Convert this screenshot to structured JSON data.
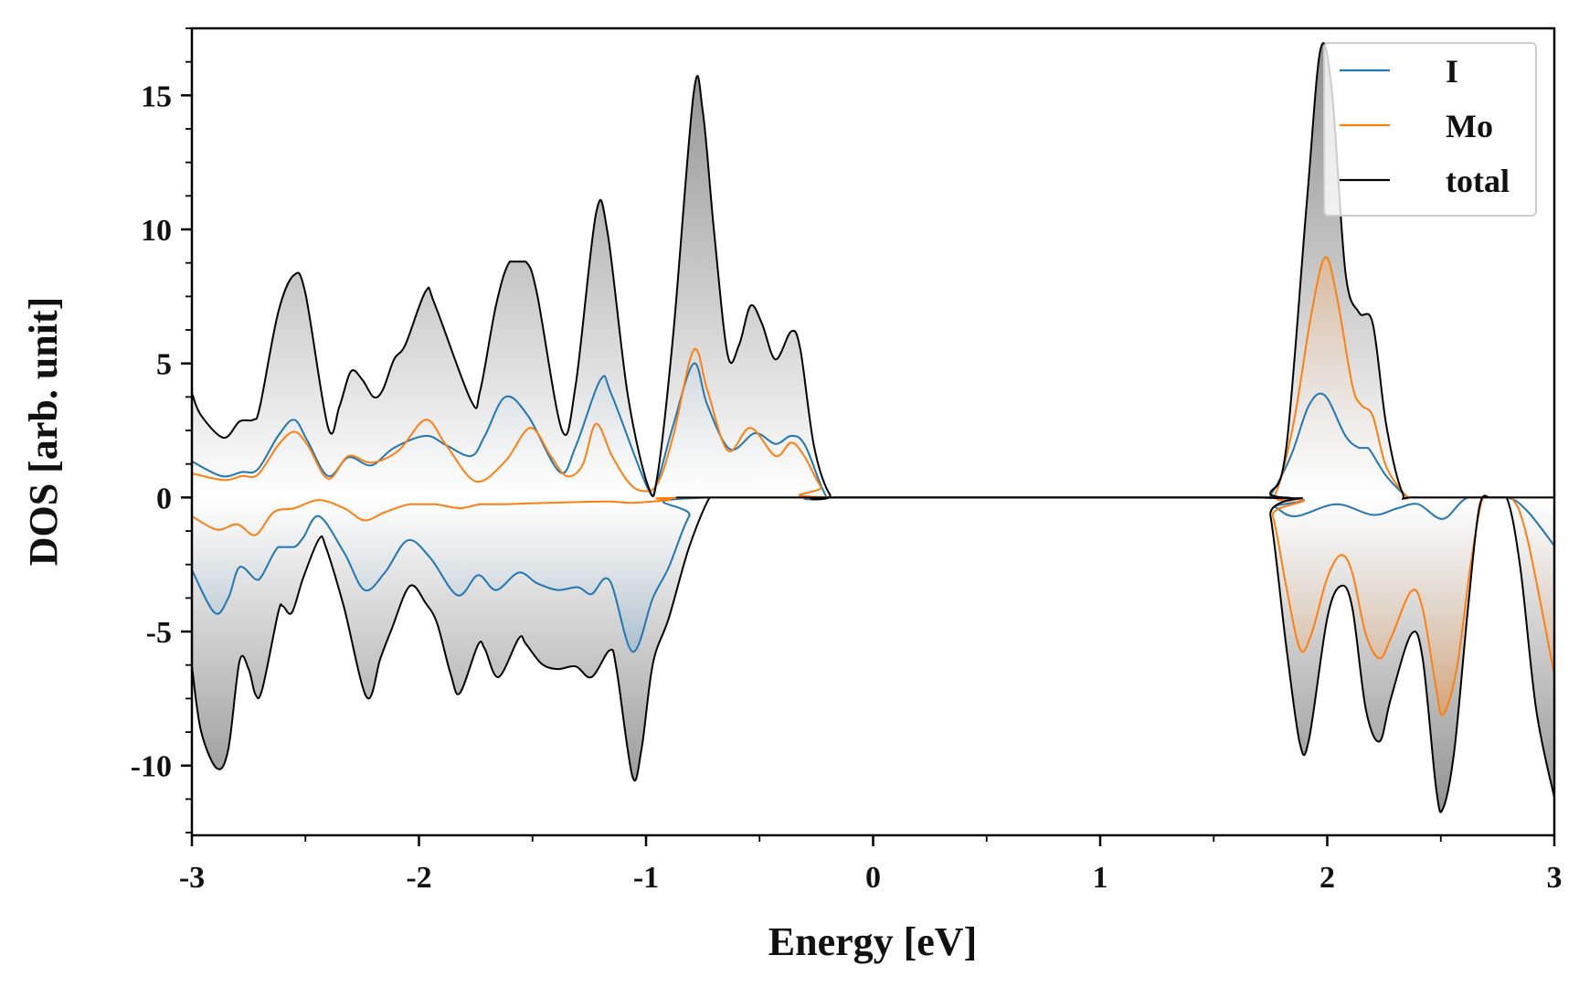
{
  "chart_data": {
    "type": "line",
    "title": "",
    "xlabel": "Energy [eV]",
    "ylabel": "DOS [arb. unit]",
    "xlim": [
      -3,
      3
    ],
    "ylim": [
      -12.6,
      17.5
    ],
    "xticks": [
      -3,
      -2,
      -1,
      0,
      1,
      2,
      3
    ],
    "xtick_labels": [
      "-3",
      "-2",
      "-1",
      "0",
      "1",
      "2",
      "3"
    ],
    "yticks": [
      -10,
      -5,
      0,
      5,
      10,
      15
    ],
    "ytick_labels": [
      "-10",
      "-5",
      "0",
      "5",
      "10",
      "15"
    ],
    "grid": false,
    "legend_position": "top-right",
    "colors": {
      "I": "#1f77b4",
      "Mo": "#ff7f0e",
      "total": "#000000"
    },
    "legend": [
      "I",
      "Mo",
      "total"
    ],
    "series": [
      {
        "name": "total",
        "spin": "up",
        "points": [
          [
            -3,
            3.9
          ],
          [
            -2.96,
            3.07
          ],
          [
            -2.86,
            2.23
          ],
          [
            -2.79,
            2.84
          ],
          [
            -2.73,
            2.9
          ],
          [
            -2.7,
            3.4
          ],
          [
            -2.62,
            6.9
          ],
          [
            -2.55,
            8.3
          ],
          [
            -2.5,
            7.6
          ],
          [
            -2.4,
            2.6
          ],
          [
            -2.35,
            3.4
          ],
          [
            -2.3,
            4.7
          ],
          [
            -2.25,
            4.4
          ],
          [
            -2.2,
            3.75
          ],
          [
            -2.16,
            4.0
          ],
          [
            -2.11,
            5.15
          ],
          [
            -2.06,
            5.7
          ],
          [
            -1.97,
            7.7
          ],
          [
            -1.93,
            7.2
          ],
          [
            -1.77,
            3.6
          ],
          [
            -1.73,
            4.0
          ],
          [
            -1.66,
            7.2
          ],
          [
            -1.6,
            8.8
          ],
          [
            -1.53,
            8.8
          ],
          [
            -1.48,
            7.6
          ],
          [
            -1.37,
            2.5
          ],
          [
            -1.31,
            4.2
          ],
          [
            -1.22,
            10.6
          ],
          [
            -1.17,
            9.9
          ],
          [
            -1.08,
            3.8
          ],
          [
            -0.99,
            0.4
          ],
          [
            -0.95,
            0.8
          ],
          [
            -0.88,
            6.1
          ],
          [
            -0.79,
            15.1
          ],
          [
            -0.75,
            14.4
          ],
          [
            -0.7,
            9.9
          ],
          [
            -0.64,
            5.3
          ],
          [
            -0.59,
            5.7
          ],
          [
            -0.54,
            7.15
          ],
          [
            -0.49,
            6.5
          ],
          [
            -0.43,
            5.15
          ],
          [
            -0.36,
            6.2
          ],
          [
            -0.32,
            5.5
          ],
          [
            -0.26,
            1.9
          ],
          [
            -0.19,
            0.1
          ],
          [
            -0.12,
            0
          ],
          [
            1.68,
            0
          ],
          [
            1.75,
            0.2
          ],
          [
            1.82,
            1.9
          ],
          [
            1.91,
            11
          ],
          [
            1.97,
            16.7
          ],
          [
            2.02,
            15.2
          ],
          [
            2.08,
            8.4
          ],
          [
            2.14,
            6.9
          ],
          [
            2.2,
            6.5
          ],
          [
            2.26,
            2.7
          ],
          [
            2.33,
            0.2
          ],
          [
            2.4,
            0
          ],
          [
            3,
            0
          ]
        ]
      },
      {
        "name": "total",
        "spin": "down",
        "points": [
          [
            -3,
            -6.3
          ],
          [
            -2.96,
            -8.7
          ],
          [
            -2.89,
            -10.1
          ],
          [
            -2.84,
            -9.4
          ],
          [
            -2.79,
            -6.1
          ],
          [
            -2.75,
            -6.4
          ],
          [
            -2.72,
            -7.35
          ],
          [
            -2.69,
            -7.15
          ],
          [
            -2.62,
            -4.3
          ],
          [
            -2.6,
            -4.05
          ],
          [
            -2.56,
            -4.3
          ],
          [
            -2.51,
            -3.0
          ],
          [
            -2.44,
            -1.55
          ],
          [
            -2.41,
            -1.85
          ],
          [
            -2.33,
            -4.1
          ],
          [
            -2.23,
            -7.45
          ],
          [
            -2.17,
            -6.0
          ],
          [
            -2.12,
            -4.9
          ],
          [
            -2.04,
            -3.3
          ],
          [
            -1.97,
            -3.95
          ],
          [
            -1.92,
            -4.7
          ],
          [
            -1.86,
            -6.6
          ],
          [
            -1.82,
            -7.3
          ],
          [
            -1.74,
            -5.5
          ],
          [
            -1.71,
            -5.65
          ],
          [
            -1.65,
            -6.7
          ],
          [
            -1.56,
            -5.25
          ],
          [
            -1.53,
            -5.45
          ],
          [
            -1.46,
            -6.2
          ],
          [
            -1.39,
            -6.4
          ],
          [
            -1.31,
            -6.3
          ],
          [
            -1.24,
            -6.7
          ],
          [
            -1.16,
            -5.7
          ],
          [
            -1.13,
            -6.4
          ],
          [
            -1.06,
            -10.4
          ],
          [
            -1.02,
            -9.4
          ],
          [
            -0.97,
            -6.2
          ],
          [
            -0.9,
            -4.5
          ],
          [
            -0.81,
            -1.85
          ],
          [
            -0.72,
            0
          ],
          [
            -0.68,
            0
          ],
          [
            1.7,
            0
          ],
          [
            1.75,
            -0.7
          ],
          [
            1.82,
            -5.6
          ],
          [
            1.88,
            -9.2
          ],
          [
            1.92,
            -9.0
          ],
          [
            2.0,
            -4.5
          ],
          [
            2.06,
            -3.3
          ],
          [
            2.11,
            -4.1
          ],
          [
            2.17,
            -7.9
          ],
          [
            2.23,
            -9.1
          ],
          [
            2.28,
            -7.5
          ],
          [
            2.37,
            -5.1
          ],
          [
            2.42,
            -6.0
          ],
          [
            2.48,
            -10.9
          ],
          [
            2.51,
            -11.6
          ],
          [
            2.56,
            -9.4
          ],
          [
            2.62,
            -4.1
          ],
          [
            2.67,
            -0.35
          ],
          [
            2.72,
            0
          ],
          [
            2.79,
            0
          ],
          [
            2.85,
            -2.6
          ],
          [
            2.92,
            -7.9
          ],
          [
            3,
            -11.2
          ]
        ]
      },
      {
        "name": "I",
        "spin": "up",
        "points": [
          [
            -3,
            1.35
          ],
          [
            -2.87,
            0.8
          ],
          [
            -2.78,
            0.95
          ],
          [
            -2.71,
            1.05
          ],
          [
            -2.62,
            2.3
          ],
          [
            -2.55,
            2.9
          ],
          [
            -2.49,
            2.1
          ],
          [
            -2.4,
            0.8
          ],
          [
            -2.31,
            1.5
          ],
          [
            -2.21,
            1.2
          ],
          [
            -2.11,
            1.85
          ],
          [
            -1.97,
            2.3
          ],
          [
            -1.88,
            1.95
          ],
          [
            -1.77,
            1.55
          ],
          [
            -1.71,
            2.3
          ],
          [
            -1.62,
            3.75
          ],
          [
            -1.52,
            3.05
          ],
          [
            -1.38,
            0.95
          ],
          [
            -1.31,
            1.9
          ],
          [
            -1.2,
            4.4
          ],
          [
            -1.15,
            3.8
          ],
          [
            -0.99,
            0.3
          ],
          [
            -0.95,
            0.6
          ],
          [
            -0.88,
            2.7
          ],
          [
            -0.79,
            5.0
          ],
          [
            -0.73,
            3.45
          ],
          [
            -0.63,
            1.8
          ],
          [
            -0.52,
            2.4
          ],
          [
            -0.43,
            2.0
          ],
          [
            -0.36,
            2.3
          ],
          [
            -0.3,
            1.95
          ],
          [
            -0.21,
            0.1
          ],
          [
            -0.15,
            0
          ],
          [
            1.7,
            0
          ],
          [
            1.75,
            0.1
          ],
          [
            1.84,
            1.55
          ],
          [
            1.92,
            3.45
          ],
          [
            1.99,
            3.8
          ],
          [
            2.08,
            2.3
          ],
          [
            2.14,
            1.85
          ],
          [
            2.18,
            1.85
          ],
          [
            2.26,
            0.8
          ],
          [
            2.35,
            0.05
          ],
          [
            2.4,
            0
          ],
          [
            3,
            0
          ]
        ]
      },
      {
        "name": "I",
        "spin": "down",
        "points": [
          [
            -3,
            -2.7
          ],
          [
            -2.9,
            -4.3
          ],
          [
            -2.84,
            -3.75
          ],
          [
            -2.79,
            -2.6
          ],
          [
            -2.72,
            -3.05
          ],
          [
            -2.69,
            -2.9
          ],
          [
            -2.62,
            -1.85
          ],
          [
            -2.55,
            -1.85
          ],
          [
            -2.51,
            -1.5
          ],
          [
            -2.44,
            -0.7
          ],
          [
            -2.33,
            -2.05
          ],
          [
            -2.24,
            -3.45
          ],
          [
            -2.15,
            -2.8
          ],
          [
            -2.05,
            -1.6
          ],
          [
            -1.95,
            -2.25
          ],
          [
            -1.83,
            -3.65
          ],
          [
            -1.74,
            -2.9
          ],
          [
            -1.66,
            -3.45
          ],
          [
            -1.56,
            -2.8
          ],
          [
            -1.48,
            -3.2
          ],
          [
            -1.39,
            -3.45
          ],
          [
            -1.3,
            -3.35
          ],
          [
            -1.24,
            -3.6
          ],
          [
            -1.16,
            -3.1
          ],
          [
            -1.06,
            -5.75
          ],
          [
            -0.97,
            -3.75
          ],
          [
            -0.9,
            -2.6
          ],
          [
            -0.81,
            -0.7
          ],
          [
            -0.72,
            0
          ],
          [
            1.7,
            0
          ],
          [
            1.77,
            -0.35
          ],
          [
            1.86,
            -0.7
          ],
          [
            2.04,
            -0.25
          ],
          [
            2.2,
            -0.65
          ],
          [
            2.31,
            -0.4
          ],
          [
            2.4,
            -0.25
          ],
          [
            2.51,
            -0.8
          ],
          [
            2.62,
            0
          ],
          [
            2.79,
            0
          ],
          [
            2.88,
            -0.5
          ],
          [
            3,
            -1.8
          ]
        ]
      },
      {
        "name": "Mo",
        "spin": "up",
        "points": [
          [
            -3,
            0.9
          ],
          [
            -2.86,
            0.65
          ],
          [
            -2.78,
            0.8
          ],
          [
            -2.71,
            0.85
          ],
          [
            -2.62,
            1.95
          ],
          [
            -2.55,
            2.45
          ],
          [
            -2.49,
            1.95
          ],
          [
            -2.4,
            0.7
          ],
          [
            -2.31,
            1.55
          ],
          [
            -2.21,
            1.3
          ],
          [
            -2.09,
            1.75
          ],
          [
            -1.97,
            2.9
          ],
          [
            -1.88,
            1.95
          ],
          [
            -1.75,
            0.6
          ],
          [
            -1.62,
            1.35
          ],
          [
            -1.51,
            2.6
          ],
          [
            -1.42,
            1.55
          ],
          [
            -1.35,
            0.8
          ],
          [
            -1.28,
            1.2
          ],
          [
            -1.22,
            2.75
          ],
          [
            -1.15,
            1.55
          ],
          [
            -1.08,
            0.6
          ],
          [
            -1.02,
            0.25
          ],
          [
            -0.95,
            0.5
          ],
          [
            -0.88,
            2.3
          ],
          [
            -0.79,
            5.5
          ],
          [
            -0.73,
            4.0
          ],
          [
            -0.64,
            1.75
          ],
          [
            -0.54,
            2.6
          ],
          [
            -0.43,
            1.55
          ],
          [
            -0.36,
            2.05
          ],
          [
            -0.3,
            1.5
          ],
          [
            -0.23,
            0.4
          ],
          [
            -0.17,
            0
          ],
          [
            1.7,
            0
          ],
          [
            1.77,
            0.1
          ],
          [
            1.85,
            2.7
          ],
          [
            1.93,
            6.85
          ],
          [
            1.99,
            8.95
          ],
          [
            2.04,
            7.6
          ],
          [
            2.11,
            4.2
          ],
          [
            2.15,
            3.45
          ],
          [
            2.2,
            3.05
          ],
          [
            2.26,
            1.15
          ],
          [
            2.35,
            0.05
          ],
          [
            2.4,
            0
          ],
          [
            3,
            0
          ]
        ]
      },
      {
        "name": "Mo",
        "spin": "down",
        "points": [
          [
            -3,
            -0.7
          ],
          [
            -2.89,
            -1.2
          ],
          [
            -2.8,
            -1.0
          ],
          [
            -2.72,
            -1.4
          ],
          [
            -2.64,
            -0.55
          ],
          [
            -2.55,
            -0.4
          ],
          [
            -2.44,
            -0.1
          ],
          [
            -2.33,
            -0.4
          ],
          [
            -2.24,
            -0.85
          ],
          [
            -2.15,
            -0.55
          ],
          [
            -2.04,
            -0.25
          ],
          [
            -1.93,
            -0.25
          ],
          [
            -1.82,
            -0.4
          ],
          [
            -1.73,
            -0.25
          ],
          [
            -1.62,
            -0.25
          ],
          [
            -1.44,
            -0.2
          ],
          [
            -1.17,
            -0.15
          ],
          [
            -1.06,
            -0.2
          ],
          [
            -0.9,
            -0.1
          ],
          [
            -0.72,
            0
          ],
          [
            1.7,
            0
          ],
          [
            1.76,
            -0.7
          ],
          [
            1.82,
            -3.35
          ],
          [
            1.88,
            -5.65
          ],
          [
            1.93,
            -5.1
          ],
          [
            2.0,
            -3.0
          ],
          [
            2.06,
            -2.15
          ],
          [
            2.11,
            -2.8
          ],
          [
            2.17,
            -5.1
          ],
          [
            2.23,
            -6.0
          ],
          [
            2.28,
            -5.25
          ],
          [
            2.37,
            -3.5
          ],
          [
            2.42,
            -4.15
          ],
          [
            2.48,
            -7.15
          ],
          [
            2.51,
            -8.1
          ],
          [
            2.57,
            -6.4
          ],
          [
            2.63,
            -2.6
          ],
          [
            2.68,
            -0.15
          ],
          [
            2.72,
            0
          ],
          [
            2.81,
            0
          ],
          [
            2.88,
            -1.5
          ],
          [
            3,
            -6.6
          ]
        ]
      }
    ]
  }
}
